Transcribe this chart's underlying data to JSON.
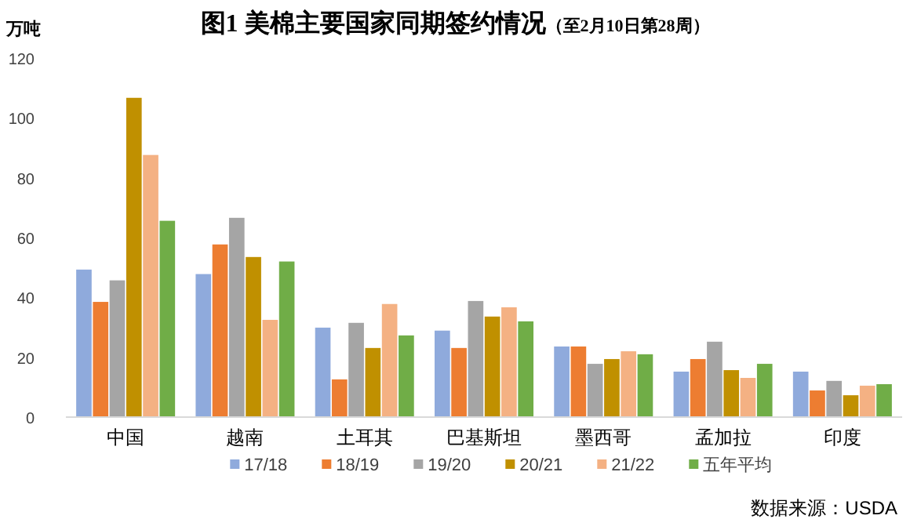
{
  "chart_data": {
    "type": "bar",
    "title": "图1  美棉主要国家同期签约情况",
    "subtitle": "（至2月10日第28周）",
    "ylabel": "万吨",
    "categories": [
      "中国",
      "越南",
      "土耳其",
      "巴基斯坦",
      "墨西哥",
      "孟加拉",
      "印度"
    ],
    "series": [
      {
        "name": "17/18",
        "color": "#8faadc",
        "values": [
          49.3,
          47.8,
          29.9,
          28.9,
          23.6,
          15.2,
          15.2
        ]
      },
      {
        "name": "18/19",
        "color": "#ed7d31",
        "values": [
          38.5,
          57.7,
          12.6,
          23.1,
          23.6,
          19.4,
          8.9
        ]
      },
      {
        "name": "19/20",
        "color": "#a5a5a5",
        "values": [
          45.7,
          66.6,
          31.5,
          38.8,
          17.8,
          25.2,
          12.1
        ]
      },
      {
        "name": "20/21",
        "color": "#c09000",
        "values": [
          106.7,
          53.5,
          23.1,
          33.6,
          19.4,
          15.7,
          7.3
        ]
      },
      {
        "name": "21/22",
        "color": "#f4b183",
        "values": [
          87.6,
          32.5,
          37.8,
          36.7,
          22.0,
          13.1,
          10.5
        ]
      },
      {
        "name": "五年平均",
        "color": "#70ad47",
        "values": [
          65.6,
          52.0,
          27.3,
          32.0,
          21.0,
          17.8,
          11.0
        ]
      }
    ],
    "ylim": [
      0,
      120
    ],
    "yticks": [
      0,
      20,
      40,
      60,
      80,
      100,
      120
    ],
    "grid": false,
    "legend": "bottom",
    "annotations": [
      "数据来源：USDA"
    ]
  }
}
